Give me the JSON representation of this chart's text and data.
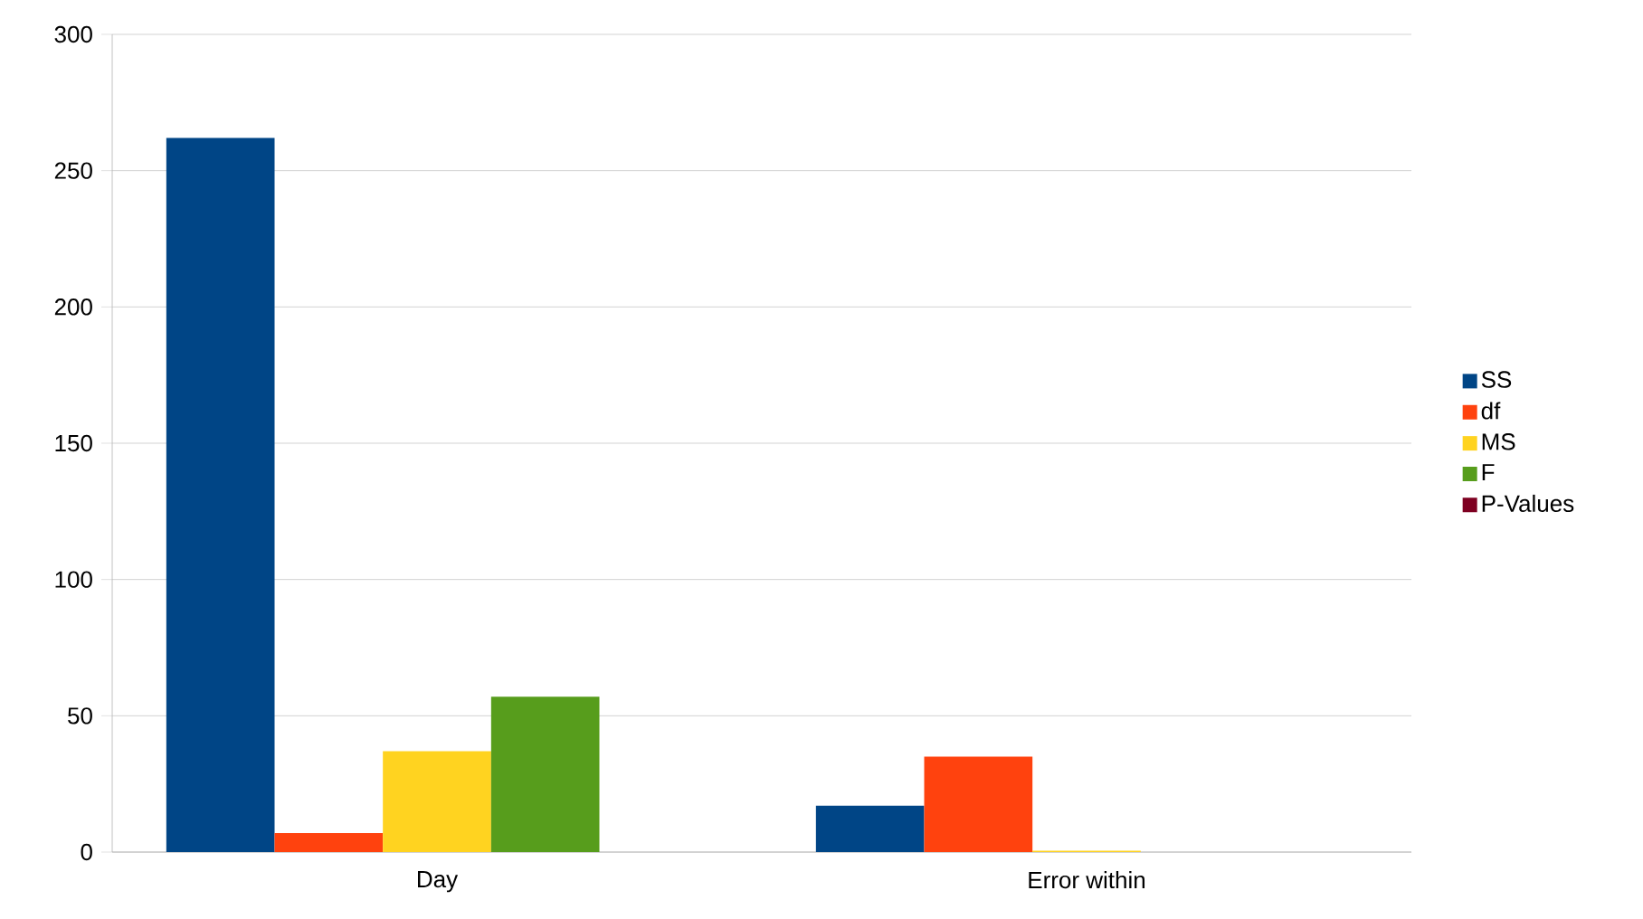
{
  "chart_data": {
    "type": "bar",
    "categories": [
      "Day",
      "Error within"
    ],
    "series": [
      {
        "name": "SS",
        "color": "#004586",
        "values": [
          262,
          17
        ]
      },
      {
        "name": "df",
        "color": "#ff420e",
        "values": [
          7,
          35
        ]
      },
      {
        "name": "MS",
        "color": "#ffd320",
        "values": [
          37,
          0.5
        ]
      },
      {
        "name": "F",
        "color": "#579d1c",
        "values": [
          57,
          null
        ]
      },
      {
        "name": "P-Values",
        "color": "#7e0021",
        "values": [
          0,
          null
        ]
      }
    ],
    "ylim": [
      0,
      300
    ],
    "yticks": [
      0,
      50,
      100,
      150,
      200,
      250,
      300
    ],
    "grid": "y",
    "legend": "right"
  }
}
